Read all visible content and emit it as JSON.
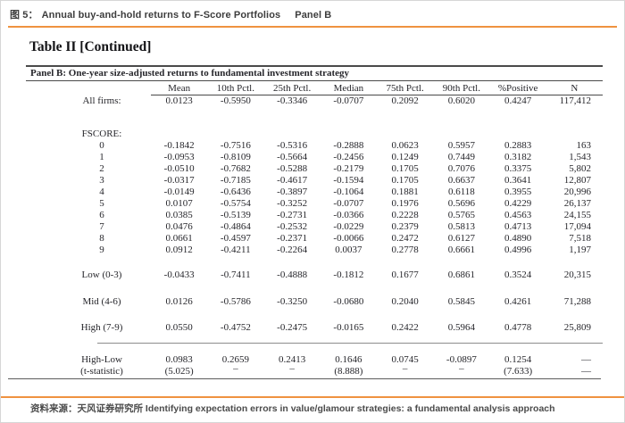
{
  "header": {
    "figure_label": "图 5：",
    "figure_title": "Annual buy-and-hold returns to F-Score Portfolios",
    "panel_label": "Panel B"
  },
  "table": {
    "title": "Table II [Continued]",
    "panel_title": "Panel B: One-year size-adjusted returns to fundamental investment strategy",
    "columns": [
      "",
      "Mean",
      "10th Pctl.",
      "25th Pctl.",
      "Median",
      "75th Pctl.",
      "90th Pctl.",
      "%Positive",
      "N"
    ],
    "rows": [
      {
        "label": "All firms:",
        "values": [
          "0.0123",
          "-0.5950",
          "-0.3346",
          "-0.0707",
          "0.2092",
          "0.6020",
          "0.4247",
          "117,412"
        ]
      },
      {
        "spacer": 24
      },
      {
        "label": "FSCORE:",
        "section": true,
        "values": [
          "",
          "",
          "",
          "",
          "",
          "",
          "",
          ""
        ]
      },
      {
        "label": "0",
        "values": [
          "-0.1842",
          "-0.7516",
          "-0.5316",
          "-0.2888",
          "0.0623",
          "0.5957",
          "0.2883",
          "163"
        ]
      },
      {
        "label": "1",
        "values": [
          "-0.0953",
          "-0.8109",
          "-0.5664",
          "-0.2456",
          "0.1249",
          "0.7449",
          "0.3182",
          "1,543"
        ]
      },
      {
        "label": "2",
        "values": [
          "-0.0510",
          "-0.7682",
          "-0.5288",
          "-0.2179",
          "0.1705",
          "0.7076",
          "0.3375",
          "5,802"
        ]
      },
      {
        "label": "3",
        "values": [
          "-0.0317",
          "-0.7185",
          "-0.4617",
          "-0.1594",
          "0.1705",
          "0.6637",
          "0.3641",
          "12,807"
        ]
      },
      {
        "label": "4",
        "values": [
          "-0.0149",
          "-0.6436",
          "-0.3897",
          "-0.1064",
          "0.1881",
          "0.6118",
          "0.3955",
          "20,996"
        ]
      },
      {
        "label": "5",
        "values": [
          "0.0107",
          "-0.5754",
          "-0.3252",
          "-0.0707",
          "0.1976",
          "0.5696",
          "0.4229",
          "26,137"
        ]
      },
      {
        "label": "6",
        "values": [
          "0.0385",
          "-0.5139",
          "-0.2731",
          "-0.0366",
          "0.2228",
          "0.5765",
          "0.4563",
          "24,155"
        ]
      },
      {
        "label": "7",
        "values": [
          "0.0476",
          "-0.4864",
          "-0.2532",
          "-0.0229",
          "0.2379",
          "0.5813",
          "0.4713",
          "17,094"
        ]
      },
      {
        "label": "8",
        "values": [
          "0.0661",
          "-0.4597",
          "-0.2371",
          "-0.0066",
          "0.2472",
          "0.6127",
          "0.4890",
          "7,518"
        ]
      },
      {
        "label": "9",
        "values": [
          "0.0912",
          "-0.4211",
          "-0.2264",
          "0.0037",
          "0.2778",
          "0.6661",
          "0.4996",
          "1,197"
        ]
      },
      {
        "spacer": 15
      },
      {
        "label": "Low (0-3)",
        "values": [
          "-0.0433",
          "-0.7411",
          "-0.4888",
          "-0.1812",
          "0.1677",
          "0.6861",
          "0.3524",
          "20,315"
        ]
      },
      {
        "spacer": 17
      },
      {
        "label": "Mid (4-6)",
        "values": [
          "0.0126",
          "-0.5786",
          "-0.3250",
          "-0.0680",
          "0.2040",
          "0.5845",
          "0.4261",
          "71,288"
        ]
      },
      {
        "spacer": 16
      },
      {
        "label": "High (7-9)",
        "values": [
          "0.0550",
          "-0.4752",
          "-0.2475",
          "-0.0165",
          "0.2422",
          "0.5964",
          "0.4778",
          "25,809"
        ]
      },
      {
        "spacer": 11,
        "rule": true
      },
      {
        "spacer": 12
      },
      {
        "label": "High-Low",
        "values": [
          "0.0983",
          "0.2659",
          "0.2413",
          "0.1646",
          "0.0745",
          "-0.0897",
          "0.1254",
          "—"
        ]
      },
      {
        "label": "(t-statistic)",
        "tstat": true,
        "values": [
          "(5.025)",
          "–",
          "–",
          "(8.888)",
          "–",
          "–",
          "(7.633)",
          "—"
        ]
      }
    ]
  },
  "footer": {
    "source_label": "资料来源：",
    "source_text": "天风证券研究所 Identifying expectation errors in value/glamour strategies: a fundamental analysis approach"
  },
  "colors": {
    "accent_orange": "#EF9240",
    "rule_dark": "#4a4a4a",
    "rule_gray": "#8c8c8c"
  }
}
